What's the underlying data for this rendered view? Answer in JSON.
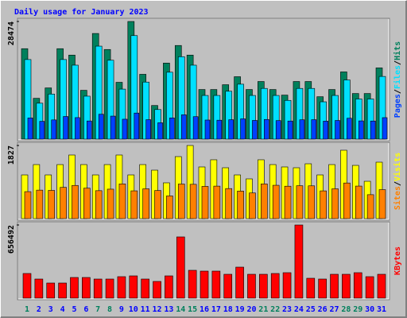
{
  "title": "Daily usage for January 2023",
  "legend_separator": "/",
  "chart_data": [
    {
      "type": "bar",
      "ylim": [
        0,
        28474
      ],
      "yticks": [
        28474
      ],
      "series": [
        {
          "name": "Hits",
          "color": "#00805c",
          "values": [
            21888,
            9879,
            12397,
            21888,
            20339,
            11816,
            25569,
            21694,
            13753,
            28474,
            15690,
            8136,
            18402,
            22663,
            20339,
            12010,
            12010,
            13172,
            15109,
            12010,
            13946,
            12010,
            10654,
            13946,
            13946,
            10266,
            12010,
            16271,
            11041,
            11041,
            17240
          ]
        },
        {
          "name": "Files",
          "color": "#00e0ff",
          "values": [
            19261,
            8694,
            10909,
            19261,
            17898,
            10398,
            22501,
            19091,
            12103,
            25057,
            13807,
            7160,
            16194,
            19943,
            17898,
            10569,
            10569,
            11591,
            13296,
            10569,
            12272,
            10569,
            9376,
            12272,
            12272,
            9034,
            10569,
            14318,
            9716,
            9716,
            15171
          ]
        },
        {
          "name": "Pages",
          "color": "#0040ff",
          "values": [
            5120,
            4310,
            4650,
            5480,
            5210,
            4390,
            6020,
            5570,
            4820,
            6310,
            4710,
            3960,
            5130,
            5890,
            5440,
            4620,
            4580,
            4700,
            4910,
            4530,
            4760,
            4490,
            4380,
            4690,
            4710,
            4350,
            4520,
            5060,
            4410,
            4380,
            5200
          ]
        }
      ]
    },
    {
      "type": "bar",
      "ylim": [
        0,
        1827
      ],
      "yticks": [
        1827
      ],
      "series": [
        {
          "name": "Visits",
          "color": "#ffff00",
          "values": [
            1092,
            1350,
            1092,
            1350,
            1589,
            1350,
            1092,
            1350,
            1589,
            1092,
            1350,
            1211,
            894,
            1549,
            1827,
            1291,
            1470,
            1271,
            1092,
            993,
            1470,
            1350,
            1291,
            1271,
            1370,
            1092,
            1350,
            1708,
            1330,
            933,
            1410
          ]
        },
        {
          "name": "Sites",
          "color": "#ff8000",
          "values": [
            674,
            712,
            705,
            781,
            829,
            761,
            698,
            736,
            867,
            694,
            745,
            702,
            567,
            864,
            857,
            806,
            812,
            751,
            688,
            641,
            867,
            833,
            810,
            822,
            819,
            693,
            745,
            890,
            813,
            598,
            724
          ]
        }
      ]
    },
    {
      "type": "bar",
      "ylim": [
        0,
        656492
      ],
      "yticks": [
        656492
      ],
      "categories": [
        "1",
        "2",
        "3",
        "4",
        "5",
        "6",
        "7",
        "8",
        "9",
        "10",
        "11",
        "12",
        "13",
        "14",
        "15",
        "16",
        "17",
        "18",
        "19",
        "20",
        "21",
        "22",
        "23",
        "24",
        "25",
        "26",
        "27",
        "28",
        "29",
        "30",
        "31"
      ],
      "highlighted": [
        0,
        6,
        7,
        13,
        14,
        20,
        21,
        27,
        28
      ],
      "highlight_color": "#00805c",
      "label_color": "#0000ff",
      "series": [
        {
          "name": "KBytes",
          "color": "#ff0000",
          "values": [
            221200,
            171300,
            135600,
            135600,
            185500,
            185500,
            171300,
            171300,
            192700,
            199800,
            171300,
            149900,
            199800,
            549500,
            249800,
            242600,
            242600,
            214100,
            278300,
            214100,
            214100,
            221200,
            228400,
            656492,
            178400,
            171300,
            214100,
            214100,
            228400,
            192700,
            214100
          ]
        }
      ]
    }
  ]
}
